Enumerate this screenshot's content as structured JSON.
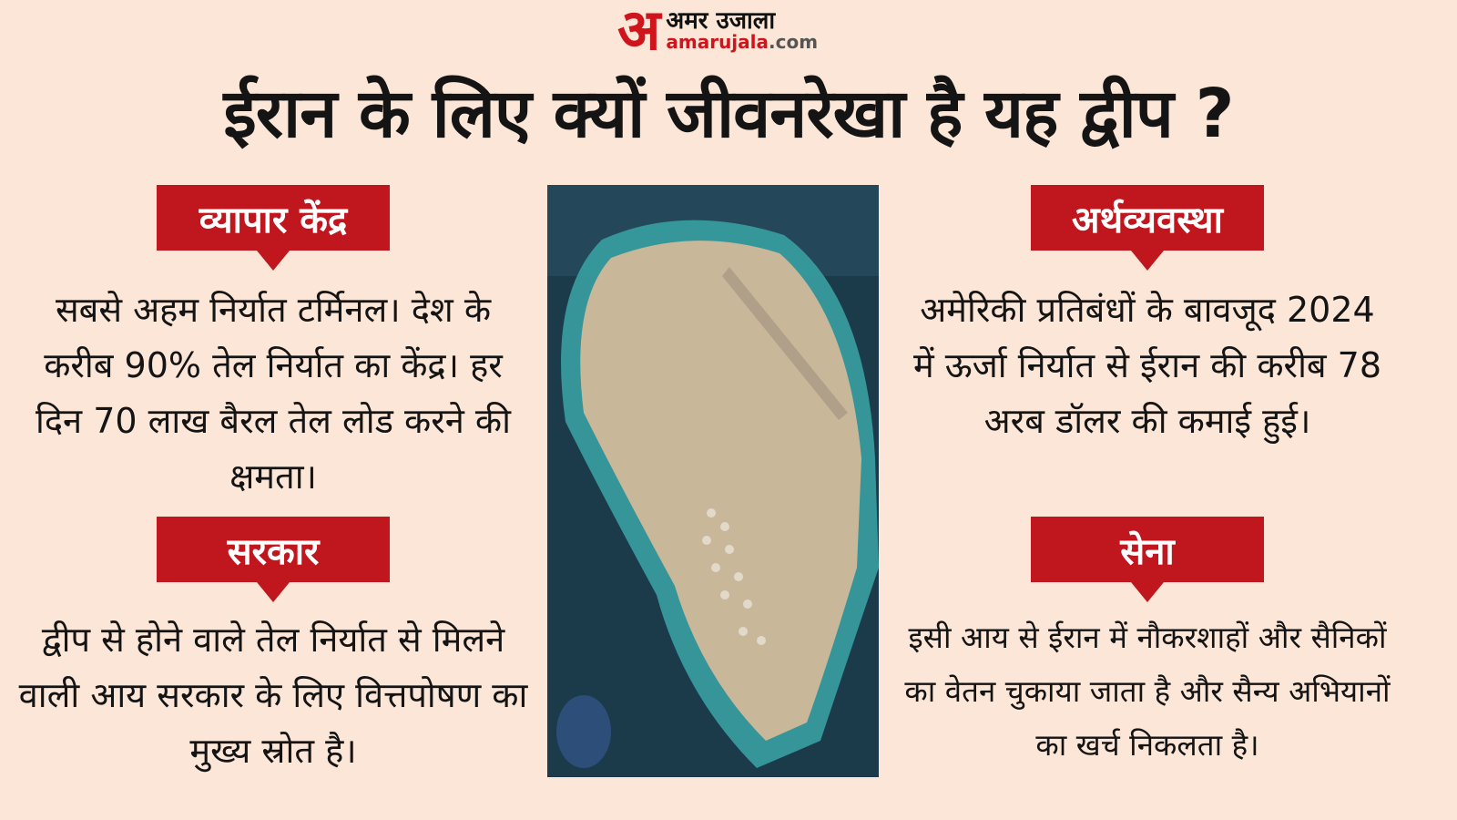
{
  "logo": {
    "mark": "अ",
    "hindi": "अमर उजाला",
    "domain_main": "amarujala",
    "domain_tld": ".com"
  },
  "title": "ईरान के लिए क्यों जीवनरेखा है यह द्वीप ?",
  "colors": {
    "background": "#fbe6d7",
    "label": "#c0161e"
  },
  "sections": [
    {
      "label": "व्यापार केंद्र",
      "text": "सबसे अहम निर्यात टर्मिनल। देश के करीब 90% तेल निर्यात का केंद्र। हर दिन 70 लाख बैरल तेल लोड करने की क्षमता।"
    },
    {
      "label": "अर्थव्यवस्था",
      "text": "अमेरिकी प्रतिबंधों के बावजूद 2024 में ऊर्जा निर्यात से ईरान की करीब 78 अरब डॉलर की कमाई हुई।"
    },
    {
      "label": "सरकार",
      "text": "द्वीप से होने वाले तेल निर्यात से मिलने वाली आय सरकार के लिए वित्तपोषण का मुख्य स्रोत है।"
    },
    {
      "label": "सेना",
      "text": "इसी आय से ईरान में नौकरशाहों और सैनिकों का वेतन चुकाया जाता है और सैन्य अभियानों का खर्च निकलता है।"
    }
  ],
  "map": {
    "icon": "satellite-island-image"
  }
}
